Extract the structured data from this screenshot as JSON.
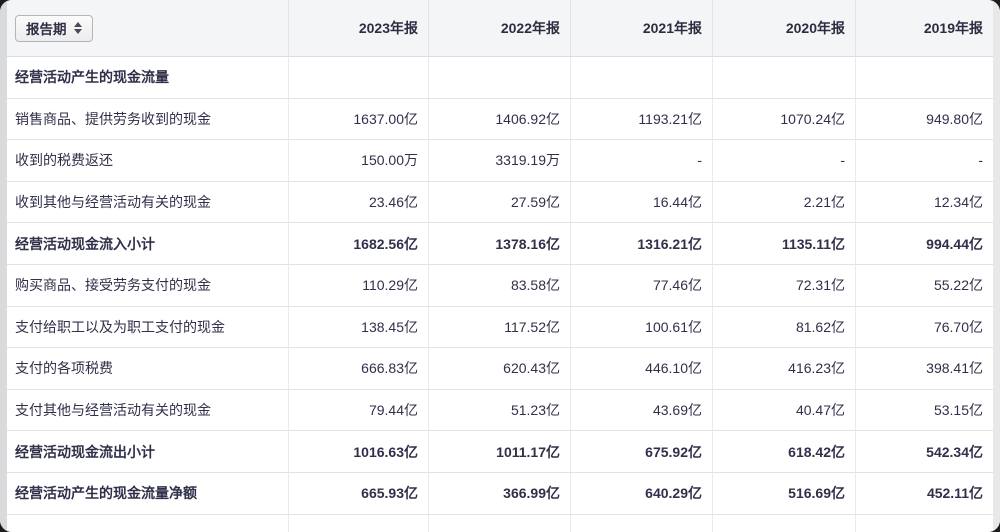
{
  "table": {
    "sort_button": {
      "label": "报告期"
    },
    "columns": [
      "2023年报",
      "2022年报",
      "2021年报",
      "2020年报",
      "2019年报"
    ],
    "rows": [
      {
        "label": "经营活动产生的现金流量",
        "bold": true,
        "values": [
          "",
          "",
          "",
          "",
          ""
        ]
      },
      {
        "label": "销售商品、提供劳务收到的现金",
        "bold": false,
        "values": [
          "1637.00亿",
          "1406.92亿",
          "1193.21亿",
          "1070.24亿",
          "949.80亿"
        ]
      },
      {
        "label": "收到的税费返还",
        "bold": false,
        "values": [
          "150.00万",
          "3319.19万",
          "-",
          "-",
          "-"
        ]
      },
      {
        "label": "收到其他与经营活动有关的现金",
        "bold": false,
        "values": [
          "23.46亿",
          "27.59亿",
          "16.44亿",
          "2.21亿",
          "12.34亿"
        ]
      },
      {
        "label": "经营活动现金流入小计",
        "bold": true,
        "values": [
          "1682.56亿",
          "1378.16亿",
          "1316.21亿",
          "1135.11亿",
          "994.44亿"
        ]
      },
      {
        "label": "购买商品、接受劳务支付的现金",
        "bold": false,
        "values": [
          "110.29亿",
          "83.58亿",
          "77.46亿",
          "72.31亿",
          "55.22亿"
        ]
      },
      {
        "label": "支付给职工以及为职工支付的现金",
        "bold": false,
        "values": [
          "138.45亿",
          "117.52亿",
          "100.61亿",
          "81.62亿",
          "76.70亿"
        ]
      },
      {
        "label": "支付的各项税费",
        "bold": false,
        "values": [
          "666.83亿",
          "620.43亿",
          "446.10亿",
          "416.23亿",
          "398.41亿"
        ]
      },
      {
        "label": "支付其他与经营活动有关的现金",
        "bold": false,
        "values": [
          "79.44亿",
          "51.23亿",
          "43.69亿",
          "40.47亿",
          "53.15亿"
        ]
      },
      {
        "label": "经营活动现金流出小计",
        "bold": true,
        "values": [
          "1016.63亿",
          "1011.17亿",
          "675.92亿",
          "618.42亿",
          "542.34亿"
        ]
      },
      {
        "label": "经营活动产生的现金流量净额",
        "bold": true,
        "values": [
          "665.93亿",
          "366.99亿",
          "640.29亿",
          "516.69亿",
          "452.11亿"
        ]
      }
    ],
    "colors": {
      "text": "#30304a",
      "header_bg": "#f4f5f7",
      "row_border": "#e2e3e6",
      "outer_bg": "#1c1c1e"
    }
  }
}
